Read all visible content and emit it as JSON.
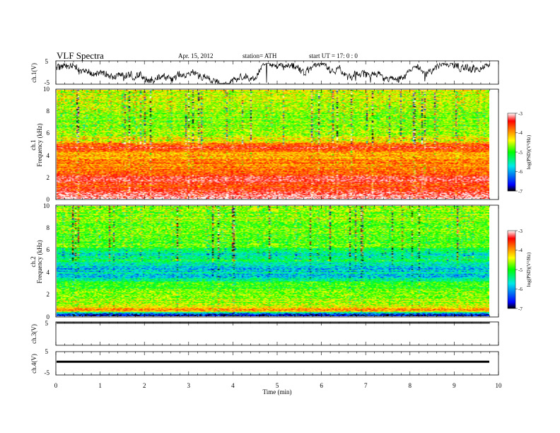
{
  "header": {
    "title": "VLF  Spectra",
    "date": "Apr. 15, 2012",
    "station": "station= ATH",
    "start": "start  UT  =    17: 0  : 0"
  },
  "colors": {
    "trace": "#000000",
    "colormap": [
      "#000000",
      "#0000ff",
      "#00e8e8",
      "#00ff00",
      "#ffff00",
      "#ff7f00",
      "#ff0000",
      "#ffffff"
    ]
  },
  "chart_data": [
    {
      "type": "line",
      "ylabel": "ch.1(V)",
      "ylim": [
        -5,
        5
      ],
      "yticks": [
        "5",
        "-5"
      ],
      "x_range_min": [
        0,
        9.82
      ],
      "series": [
        {
          "kind": "noisy trace",
          "y_center": 1.2,
          "y_min": -3.5,
          "y_max": 4.0
        }
      ]
    },
    {
      "type": "heatmap",
      "ylabel_top": "ch.1",
      "ylabel": "Frequency  (kHz)",
      "ylim": [
        0,
        10
      ],
      "yticks": [
        "0",
        "2",
        "4",
        "6",
        "8",
        "10"
      ],
      "x_range_min": [
        0,
        9.82
      ],
      "colorbar": {
        "label": "log(PSD)(V²/Hz)",
        "range": [
          -7,
          -3
        ],
        "ticks": [
          "-3",
          "-4",
          "-5",
          "-6",
          "-7"
        ]
      },
      "band_profile_logpsd": [
        [
          0.5,
          -3.2
        ],
        [
          1.0,
          -3.8
        ],
        [
          1.8,
          -3.4
        ],
        [
          2.3,
          -3.8
        ],
        [
          3.0,
          -4.0
        ],
        [
          4.0,
          -4.2
        ],
        [
          4.8,
          -3.6
        ],
        [
          5.3,
          -4.5
        ],
        [
          6.0,
          -4.8
        ],
        [
          7.0,
          -4.9
        ],
        [
          8.0,
          -4.8
        ],
        [
          9.0,
          -4.7
        ],
        [
          10.0,
          -4.7
        ]
      ]
    },
    {
      "type": "heatmap",
      "ylabel_top": "ch.2",
      "ylabel": "Frequency  (kHz)",
      "ylim": [
        0,
        10
      ],
      "yticks": [
        "0",
        "2",
        "4",
        "6",
        "8",
        "10"
      ],
      "x_range_min": [
        0,
        9.82
      ],
      "colorbar": {
        "label": "log(PSD)(V²/Hz)",
        "range": [
          -7,
          -3
        ],
        "ticks": [
          "-3",
          "-4",
          "-5",
          "-6",
          "-7"
        ]
      },
      "band_profile_logpsd": [
        [
          0.2,
          -6.6
        ],
        [
          0.5,
          -3.8
        ],
        [
          1.0,
          -4.8
        ],
        [
          2.0,
          -5.0
        ],
        [
          3.0,
          -5.2
        ],
        [
          3.5,
          -5.9
        ],
        [
          4.3,
          -6.0
        ],
        [
          5.0,
          -5.5
        ],
        [
          5.6,
          -5.8
        ],
        [
          6.5,
          -5.0
        ],
        [
          7.5,
          -5.0
        ],
        [
          8.5,
          -4.9
        ],
        [
          10.0,
          -4.9
        ]
      ]
    },
    {
      "type": "line",
      "ylabel": "ch.3(V)",
      "ylim": [
        -5,
        5
      ],
      "yticks": [
        "5"
      ],
      "x_range_min": [
        0,
        9.82
      ],
      "series": [
        {
          "kind": "flat",
          "y": 5
        }
      ]
    },
    {
      "type": "line",
      "ylabel": "ch.4(V)",
      "ylim": [
        -5,
        5
      ],
      "yticks": [
        "5",
        "-5"
      ],
      "xlabel": "Time  (min)",
      "xlim": [
        0,
        10
      ],
      "xticks": [
        "0",
        "1",
        "2",
        "3",
        "4",
        "5",
        "6",
        "7",
        "8",
        "9",
        "10"
      ],
      "x_range_min": [
        0,
        9.82
      ],
      "series": [
        {
          "kind": "flat",
          "y": 0.2
        }
      ]
    }
  ]
}
